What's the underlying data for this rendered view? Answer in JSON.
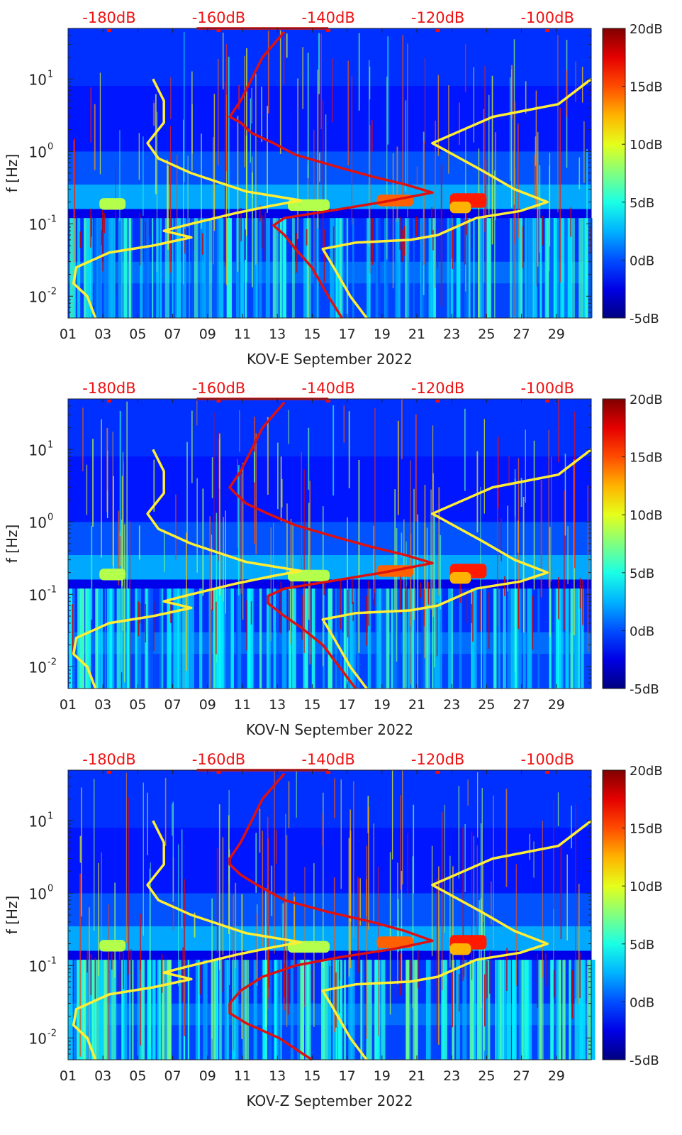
{
  "chart_data": [
    {
      "type": "heatmap",
      "station": "KOV-E",
      "xlabel": "KOV-E September 2022",
      "ylabel": "f [Hz]",
      "x_ticks": [
        "01",
        "03",
        "05",
        "07",
        "09",
        "11",
        "13",
        "15",
        "17",
        "19",
        "21",
        "23",
        "25",
        "27",
        "29"
      ],
      "x_range_days": [
        1,
        31
      ],
      "y_scale": "log",
      "y_ticks": [
        {
          "label": "10",
          "exp": "-2",
          "value": 0.01
        },
        {
          "label": "10",
          "exp": "-1",
          "value": 0.1
        },
        {
          "label": "10",
          "exp": "0",
          "value": 1
        },
        {
          "label": "10",
          "exp": "1",
          "value": 10
        }
      ],
      "y_range_hz": [
        0.005,
        50
      ],
      "top_axis_ticks": [
        "-180dB",
        "-160dB",
        "-140dB",
        "-120dB",
        "-100dB"
      ],
      "top_axis_range_db": [
        -187.5,
        -92
      ],
      "colorbar_ticks": [
        "20dB",
        "15dB",
        "10dB",
        "5dB",
        "0dB",
        "-5dB"
      ],
      "colorbar_range_db": [
        -5,
        20
      ],
      "series": [
        {
          "color": "#ffee33",
          "points": [
            [
              -182.5,
              0.005
            ],
            [
              -184,
              0.01
            ],
            [
              -186.5,
              0.015
            ],
            [
              -186,
              0.025
            ],
            [
              -180,
              0.04
            ],
            [
              -172,
              0.05
            ],
            [
              -165,
              0.065
            ],
            [
              -170,
              0.08
            ],
            [
              -165,
              0.1
            ],
            [
              -157,
              0.14
            ],
            [
              -150,
              0.18
            ],
            [
              -145,
              0.21
            ],
            [
              -155,
              0.28
            ],
            [
              -165,
              0.5
            ],
            [
              -171,
              0.8
            ],
            [
              -173,
              1.3
            ],
            [
              -170,
              2.5
            ],
            [
              -170,
              5
            ],
            [
              -172,
              10
            ]
          ]
        },
        {
          "color": "#ffee33",
          "points": [
            [
              -133,
              0.005
            ],
            [
              -136,
              0.01
            ],
            [
              -139,
              0.025
            ],
            [
              -141,
              0.045
            ],
            [
              -135,
              0.055
            ],
            [
              -125,
              0.06
            ],
            [
              -120,
              0.07
            ],
            [
              -113,
              0.12
            ],
            [
              -105,
              0.15
            ],
            [
              -100,
              0.2
            ],
            [
              -106,
              0.3
            ],
            [
              -112,
              0.55
            ],
            [
              -121,
              1.3
            ],
            [
              -110,
              3
            ],
            [
              -98,
              4.5
            ],
            [
              -92,
              10
            ]
          ]
        },
        {
          "color": "#dd1111",
          "points": [
            [
              -137.5,
              0.005
            ],
            [
              -140,
              0.01
            ],
            [
              -143,
              0.025
            ],
            [
              -146,
              0.045
            ],
            [
              -148,
              0.07
            ],
            [
              -150,
              0.095
            ],
            [
              -148,
              0.12
            ],
            [
              -140,
              0.15
            ],
            [
              -130,
              0.2
            ],
            [
              -121,
              0.27
            ],
            [
              -126,
              0.35
            ],
            [
              -132,
              0.45
            ],
            [
              -138,
              0.6
            ],
            [
              -146,
              0.9
            ],
            [
              -150,
              1.3
            ],
            [
              -154,
              1.8
            ],
            [
              -156,
              2.5
            ],
            [
              -158,
              3
            ],
            [
              -156,
              5
            ],
            [
              -154,
              10
            ],
            [
              -152,
              20
            ],
            [
              -150,
              30
            ],
            [
              -148,
              45
            ]
          ]
        },
        {
          "color": "#dd1111",
          "points": [
            [
              -164,
              50
            ],
            [
              -158,
              50
            ],
            [
              -152,
              50
            ],
            [
              -146,
              50
            ],
            [
              -140,
              50
            ]
          ]
        }
      ]
    },
    {
      "type": "heatmap",
      "station": "KOV-N",
      "xlabel": "KOV-N September 2022",
      "ylabel": "f [Hz]",
      "x_ticks": [
        "01",
        "03",
        "05",
        "07",
        "09",
        "11",
        "13",
        "15",
        "17",
        "19",
        "21",
        "23",
        "25",
        "27",
        "29"
      ],
      "x_range_days": [
        1,
        31
      ],
      "y_scale": "log",
      "y_ticks": [
        {
          "label": "10",
          "exp": "-2",
          "value": 0.01
        },
        {
          "label": "10",
          "exp": "-1",
          "value": 0.1
        },
        {
          "label": "10",
          "exp": "0",
          "value": 1
        },
        {
          "label": "10",
          "exp": "1",
          "value": 10
        }
      ],
      "y_range_hz": [
        0.005,
        50
      ],
      "top_axis_ticks": [
        "-180dB",
        "-160dB",
        "-140dB",
        "-120dB",
        "-100dB"
      ],
      "top_axis_range_db": [
        -187.5,
        -92
      ],
      "colorbar_ticks": [
        "20dB",
        "15dB",
        "10dB",
        "5dB",
        "0dB",
        "-5dB"
      ],
      "colorbar_range_db": [
        -5,
        20
      ],
      "series": [
        {
          "color": "#ffee33",
          "points": [
            [
              -182.5,
              0.005
            ],
            [
              -184,
              0.01
            ],
            [
              -186.5,
              0.015
            ],
            [
              -186,
              0.025
            ],
            [
              -180,
              0.04
            ],
            [
              -172,
              0.05
            ],
            [
              -165,
              0.065
            ],
            [
              -170,
              0.08
            ],
            [
              -165,
              0.1
            ],
            [
              -157,
              0.14
            ],
            [
              -150,
              0.18
            ],
            [
              -145,
              0.21
            ],
            [
              -155,
              0.28
            ],
            [
              -165,
              0.5
            ],
            [
              -171,
              0.8
            ],
            [
              -173,
              1.3
            ],
            [
              -170,
              2.5
            ],
            [
              -170,
              5
            ],
            [
              -172,
              10
            ]
          ]
        },
        {
          "color": "#ffee33",
          "points": [
            [
              -133,
              0.005
            ],
            [
              -136,
              0.01
            ],
            [
              -139,
              0.025
            ],
            [
              -141,
              0.045
            ],
            [
              -135,
              0.055
            ],
            [
              -125,
              0.06
            ],
            [
              -120,
              0.07
            ],
            [
              -113,
              0.12
            ],
            [
              -105,
              0.15
            ],
            [
              -100,
              0.2
            ],
            [
              -106,
              0.3
            ],
            [
              -112,
              0.55
            ],
            [
              -121,
              1.3
            ],
            [
              -110,
              3
            ],
            [
              -98,
              4.5
            ],
            [
              -92,
              10
            ]
          ]
        },
        {
          "color": "#dd1111",
          "points": [
            [
              -135,
              0.005
            ],
            [
              -138,
              0.01
            ],
            [
              -141,
              0.02
            ],
            [
              -145,
              0.035
            ],
            [
              -148,
              0.05
            ],
            [
              -151,
              0.075
            ],
            [
              -151,
              0.095
            ],
            [
              -148,
              0.12
            ],
            [
              -140,
              0.15
            ],
            [
              -130,
              0.2
            ],
            [
              -121,
              0.27
            ],
            [
              -126,
              0.35
            ],
            [
              -132,
              0.45
            ],
            [
              -138,
              0.6
            ],
            [
              -146,
              0.9
            ],
            [
              -151,
              1.3
            ],
            [
              -155,
              1.8
            ],
            [
              -157,
              2.5
            ],
            [
              -158,
              3
            ],
            [
              -156,
              5
            ],
            [
              -154,
              10
            ],
            [
              -152,
              20
            ],
            [
              -150,
              30
            ],
            [
              -148,
              45
            ]
          ]
        },
        {
          "color": "#dd1111",
          "points": [
            [
              -164,
              50
            ],
            [
              -158,
              50
            ],
            [
              -152,
              50
            ],
            [
              -146,
              50
            ],
            [
              -140,
              50
            ]
          ]
        }
      ]
    },
    {
      "type": "heatmap",
      "station": "KOV-Z",
      "xlabel": "KOV-Z September 2022",
      "ylabel": "f [Hz]",
      "x_ticks": [
        "01",
        "03",
        "05",
        "07",
        "09",
        "11",
        "13",
        "15",
        "17",
        "19",
        "21",
        "23",
        "25",
        "27",
        "29"
      ],
      "x_range_days": [
        1,
        31
      ],
      "y_scale": "log",
      "y_ticks": [
        {
          "label": "10",
          "exp": "-2",
          "value": 0.01
        },
        {
          "label": "10",
          "exp": "-1",
          "value": 0.1
        },
        {
          "label": "10",
          "exp": "0",
          "value": 1
        },
        {
          "label": "10",
          "exp": "1",
          "value": 10
        }
      ],
      "y_range_hz": [
        0.005,
        50
      ],
      "top_axis_ticks": [
        "-180dB",
        "-160dB",
        "-140dB",
        "-120dB",
        "-100dB"
      ],
      "top_axis_range_db": [
        -187.5,
        -92
      ],
      "colorbar_ticks": [
        "20dB",
        "15dB",
        "10dB",
        "5dB",
        "0dB",
        "-5dB"
      ],
      "colorbar_range_db": [
        -5,
        20
      ],
      "series": [
        {
          "color": "#ffee33",
          "points": [
            [
              -182.5,
              0.005
            ],
            [
              -184,
              0.01
            ],
            [
              -186.5,
              0.015
            ],
            [
              -186,
              0.025
            ],
            [
              -180,
              0.04
            ],
            [
              -172,
              0.05
            ],
            [
              -165,
              0.065
            ],
            [
              -170,
              0.08
            ],
            [
              -165,
              0.1
            ],
            [
              -157,
              0.14
            ],
            [
              -150,
              0.18
            ],
            [
              -145,
              0.21
            ],
            [
              -155,
              0.28
            ],
            [
              -165,
              0.5
            ],
            [
              -171,
              0.8
            ],
            [
              -173,
              1.3
            ],
            [
              -170,
              2.5
            ],
            [
              -170,
              5
            ],
            [
              -172,
              10
            ]
          ]
        },
        {
          "color": "#ffee33",
          "points": [
            [
              -133,
              0.005
            ],
            [
              -136,
              0.01
            ],
            [
              -139,
              0.025
            ],
            [
              -141,
              0.045
            ],
            [
              -135,
              0.055
            ],
            [
              -125,
              0.06
            ],
            [
              -120,
              0.07
            ],
            [
              -113,
              0.12
            ],
            [
              -105,
              0.15
            ],
            [
              -100,
              0.2
            ],
            [
              -106,
              0.3
            ],
            [
              -112,
              0.55
            ],
            [
              -121,
              1.3
            ],
            [
              -110,
              3
            ],
            [
              -98,
              4.5
            ],
            [
              -92,
              10
            ]
          ]
        },
        {
          "color": "#dd1111",
          "points": [
            [
              -143,
              0.005
            ],
            [
              -149,
              0.01
            ],
            [
              -155,
              0.016
            ],
            [
              -158,
              0.022
            ],
            [
              -158,
              0.03
            ],
            [
              -156,
              0.045
            ],
            [
              -152,
              0.07
            ],
            [
              -146,
              0.1
            ],
            [
              -138,
              0.13
            ],
            [
              -128,
              0.17
            ],
            [
              -121,
              0.22
            ],
            [
              -126,
              0.3
            ],
            [
              -132,
              0.4
            ],
            [
              -140,
              0.55
            ],
            [
              -148,
              0.8
            ],
            [
              -153,
              1.3
            ],
            [
              -156,
              1.8
            ],
            [
              -158,
              2.5
            ],
            [
              -158,
              3
            ],
            [
              -156,
              5
            ],
            [
              -154,
              10
            ],
            [
              -152,
              20
            ],
            [
              -150,
              30
            ],
            [
              -148,
              45
            ]
          ]
        },
        {
          "color": "#dd1111",
          "points": [
            [
              -164,
              50
            ],
            [
              -158,
              50
            ],
            [
              -152,
              50
            ],
            [
              -146,
              50
            ],
            [
              -140,
              50
            ]
          ]
        }
      ]
    }
  ]
}
